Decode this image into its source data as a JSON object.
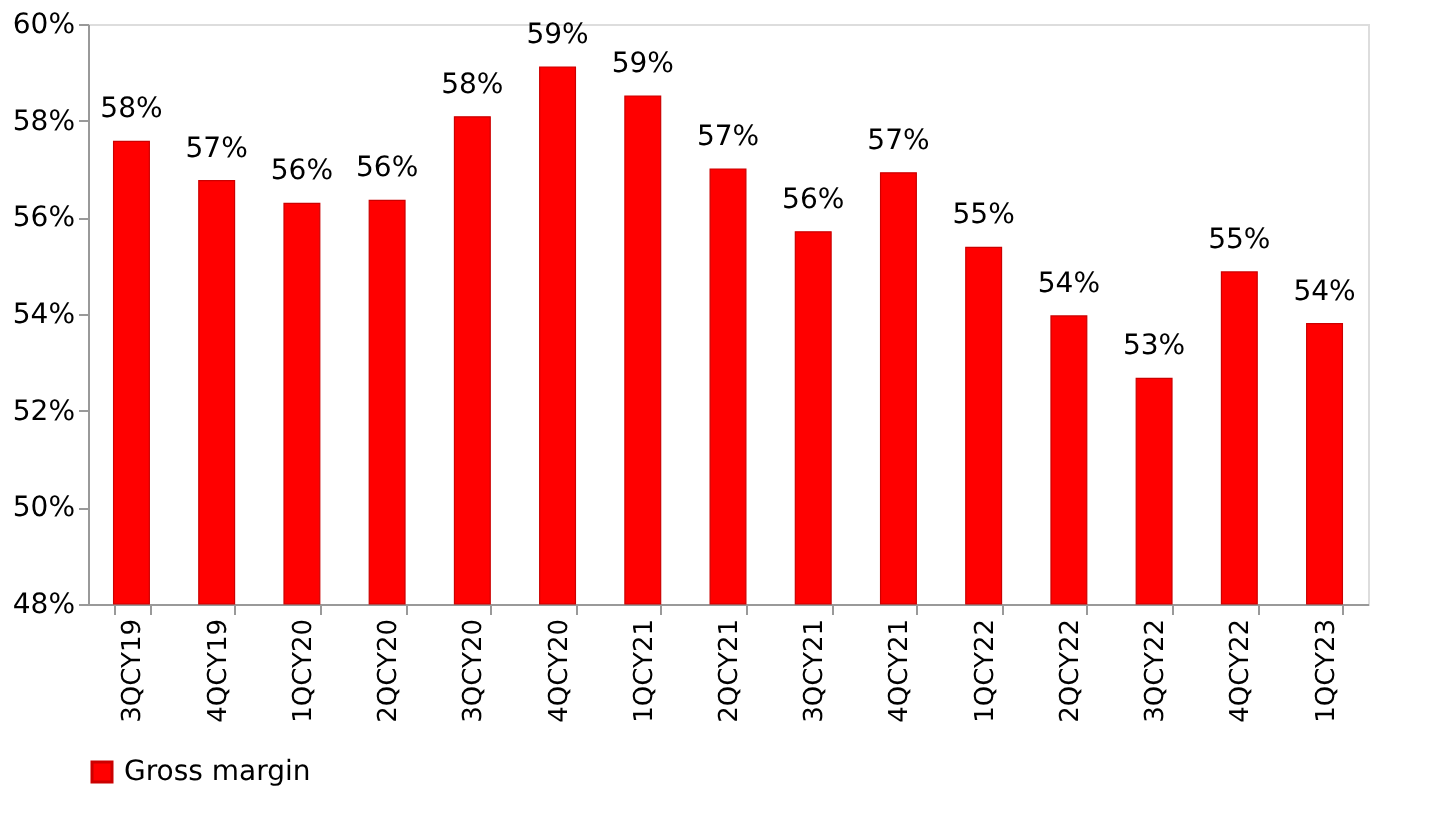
{
  "chart_data": {
    "type": "bar",
    "categories": [
      "3QCY19",
      "4QCY19",
      "1QCY20",
      "2QCY20",
      "3QCY20",
      "4QCY20",
      "1QCY21",
      "2QCY21",
      "3QCY21",
      "4QCY21",
      "1QCY22",
      "2QCY22",
      "3QCY22",
      "4QCY22",
      "1QCY23"
    ],
    "series": [
      {
        "name": "Gross margin",
        "color": "#ff0000",
        "values": [
          57.57,
          56.76,
          56.29,
          56.35,
          58.08,
          59.11,
          58.51,
          57.0,
          55.7,
          56.92,
          55.38,
          53.96,
          52.67,
          54.87,
          53.8
        ],
        "value_labels": [
          "58%",
          "57%",
          "56%",
          "56%",
          "58%",
          "59%",
          "59%",
          "57%",
          "56%",
          "57%",
          "55%",
          "54%",
          "53%",
          "55%",
          "54%"
        ]
      }
    ],
    "ylim": [
      48,
      60
    ],
    "yticks": [
      {
        "value": 48,
        "label": "48%"
      },
      {
        "value": 50,
        "label": "50%"
      },
      {
        "value": 52,
        "label": "52%"
      },
      {
        "value": 54,
        "label": "54%"
      },
      {
        "value": 56,
        "label": "56%"
      },
      {
        "value": 58,
        "label": "58%"
      },
      {
        "value": 60,
        "label": "60%"
      }
    ],
    "grid": false,
    "legend": "bottom"
  }
}
